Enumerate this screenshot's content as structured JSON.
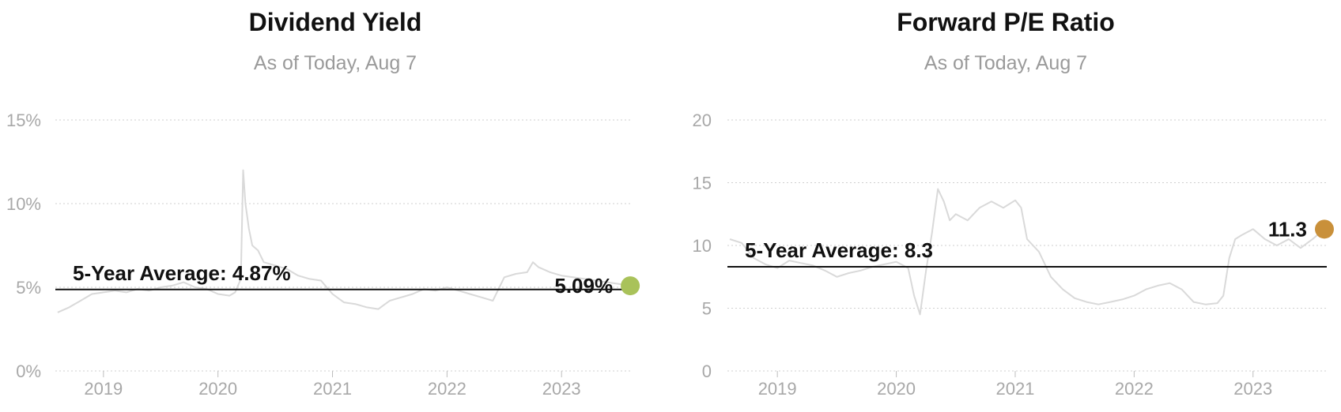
{
  "chart_data": [
    {
      "type": "line",
      "title": "Dividend Yield",
      "subtitle": "As of Today, Aug 7",
      "ylim": [
        0,
        15
      ],
      "yticks": [
        0,
        5,
        10,
        15
      ],
      "ytick_labels": [
        "0%",
        "5%",
        "10%",
        "15%"
      ],
      "xticks": [
        2019,
        2020,
        2021,
        2022,
        2023
      ],
      "xtick_labels": [
        "2019",
        "2020",
        "2021",
        "2022",
        "2023"
      ],
      "xlim": [
        2018.58,
        2023.62
      ],
      "grid": true,
      "series": [
        {
          "color": "#d9d9d9",
          "x": [
            2018.6,
            2018.7,
            2018.8,
            2018.9,
            2019.0,
            2019.1,
            2019.2,
            2019.3,
            2019.4,
            2019.5,
            2019.6,
            2019.7,
            2019.8,
            2019.9,
            2020.0,
            2020.1,
            2020.15,
            2020.2,
            2020.22,
            2020.24,
            2020.27,
            2020.3,
            2020.35,
            2020.4,
            2020.5,
            2020.6,
            2020.7,
            2020.8,
            2020.9,
            2021.0,
            2021.1,
            2021.2,
            2021.3,
            2021.4,
            2021.5,
            2021.6,
            2021.7,
            2021.8,
            2021.9,
            2022.0,
            2022.1,
            2022.2,
            2022.3,
            2022.4,
            2022.5,
            2022.6,
            2022.7,
            2022.75,
            2022.8,
            2022.9,
            2023.0,
            2023.1,
            2023.2,
            2023.3,
            2023.4,
            2023.5,
            2023.6
          ],
          "y": [
            3.5,
            3.8,
            4.2,
            4.6,
            4.7,
            4.8,
            4.7,
            4.9,
            4.8,
            5.0,
            5.1,
            5.3,
            5.0,
            4.9,
            4.6,
            4.5,
            4.7,
            5.5,
            12.0,
            10.0,
            8.5,
            7.5,
            7.2,
            6.5,
            6.3,
            6.1,
            5.7,
            5.5,
            5.4,
            4.6,
            4.1,
            4.0,
            3.8,
            3.7,
            4.2,
            4.4,
            4.6,
            4.9,
            4.8,
            5.0,
            4.8,
            4.6,
            4.4,
            4.2,
            5.6,
            5.8,
            5.9,
            6.5,
            6.2,
            5.9,
            5.7,
            5.6,
            5.5,
            5.4,
            5.3,
            5.2,
            5.09
          ]
        }
      ],
      "average": {
        "value": 4.87,
        "label": "5-Year Average: 4.87%"
      },
      "current": {
        "x": 2023.6,
        "value": 5.09,
        "label": "5.09%",
        "color": "#a9c25a"
      }
    },
    {
      "type": "line",
      "title": "Forward P/E Ratio",
      "subtitle": "As of Today, Aug 7",
      "ylim": [
        0,
        20
      ],
      "yticks": [
        0,
        5,
        10,
        15,
        20
      ],
      "ytick_labels": [
        "0",
        "5",
        "10",
        "15",
        "20"
      ],
      "xticks": [
        2019,
        2020,
        2021,
        2022,
        2023
      ],
      "xtick_labels": [
        "2019",
        "2020",
        "2021",
        "2022",
        "2023"
      ],
      "xlim": [
        2018.58,
        2023.62
      ],
      "grid": true,
      "series": [
        {
          "color": "#d9d9d9",
          "x": [
            2018.6,
            2018.7,
            2018.8,
            2018.9,
            2019.0,
            2019.1,
            2019.2,
            2019.3,
            2019.4,
            2019.5,
            2019.6,
            2019.7,
            2019.8,
            2019.9,
            2020.0,
            2020.1,
            2020.15,
            2020.2,
            2020.25,
            2020.3,
            2020.35,
            2020.4,
            2020.45,
            2020.5,
            2020.6,
            2020.7,
            2020.8,
            2020.9,
            2021.0,
            2021.05,
            2021.1,
            2021.2,
            2021.3,
            2021.4,
            2021.5,
            2021.6,
            2021.7,
            2021.8,
            2021.9,
            2022.0,
            2022.1,
            2022.2,
            2022.3,
            2022.4,
            2022.5,
            2022.6,
            2022.7,
            2022.75,
            2022.8,
            2022.85,
            2022.9,
            2023.0,
            2023.1,
            2023.2,
            2023.3,
            2023.4,
            2023.5,
            2023.6
          ],
          "y": [
            10.5,
            10.2,
            9.0,
            8.5,
            8.2,
            8.8,
            8.6,
            8.4,
            8.0,
            7.5,
            7.8,
            8.0,
            8.3,
            8.5,
            8.7,
            8.2,
            6.0,
            4.5,
            8.0,
            11.0,
            14.5,
            13.5,
            12.0,
            12.5,
            12.0,
            13.0,
            13.5,
            13.0,
            13.6,
            13.0,
            10.5,
            9.5,
            7.5,
            6.5,
            5.8,
            5.5,
            5.3,
            5.5,
            5.7,
            6.0,
            6.5,
            6.8,
            7.0,
            6.5,
            5.5,
            5.3,
            5.4,
            6.0,
            9.0,
            10.5,
            10.8,
            11.3,
            10.5,
            10.0,
            10.5,
            9.8,
            10.5,
            11.3
          ]
        }
      ],
      "average": {
        "value": 8.3,
        "label": "5-Year Average: 8.3"
      },
      "current": {
        "x": 2023.6,
        "value": 11.3,
        "label": "11.3",
        "color": "#c9903a"
      }
    }
  ]
}
